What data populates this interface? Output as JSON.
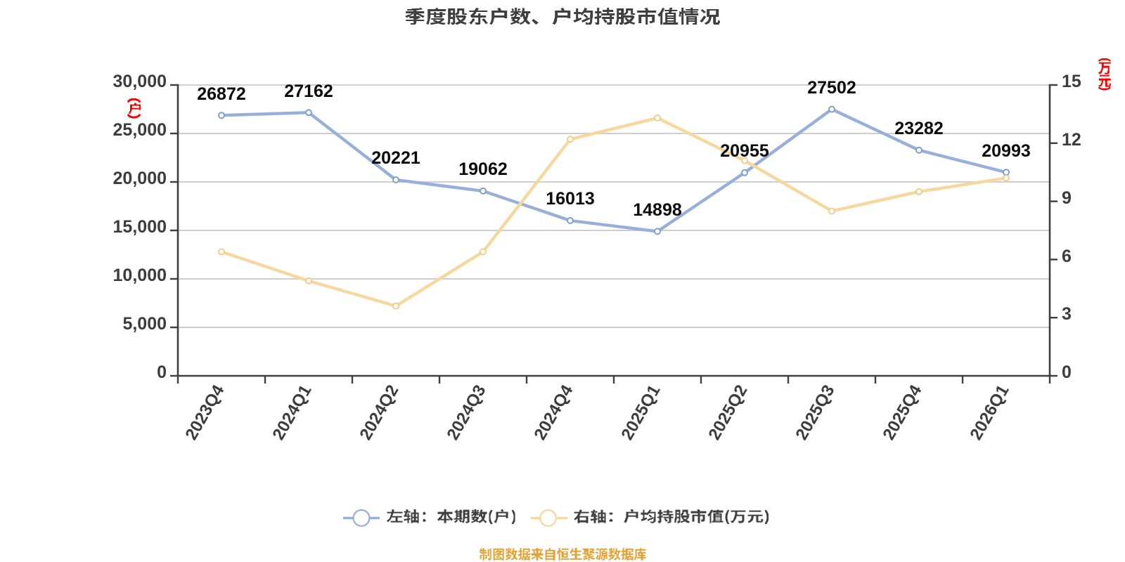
{
  "chart_data": {
    "type": "line",
    "title": "季度股东户数、户均持股市值情况",
    "categories": [
      "2023Q4",
      "2024Q1",
      "2024Q2",
      "2024Q3",
      "2024Q4",
      "2025Q1",
      "2025Q2",
      "2025Q3",
      "2025Q4",
      "2026Q1"
    ],
    "series": [
      {
        "name": "左轴：本期数(户)",
        "axis": "left",
        "color": "#96AFDB",
        "marker_color": "#7E9ED2",
        "values": [
          26872,
          27162,
          20221,
          19062,
          16013,
          14898,
          20955,
          27502,
          23282,
          20993
        ],
        "show_labels": true
      },
      {
        "name": "右轴：户均持股市值(万元)",
        "axis": "right",
        "color": "#F6D89D",
        "marker_color": "#EECD8D",
        "values": [
          6.4,
          4.9,
          3.6,
          6.4,
          12.2,
          13.3,
          11.1,
          8.5,
          9.5,
          10.2
        ],
        "show_labels": false
      }
    ],
    "left_axis": {
      "name": "(户)",
      "min": 0,
      "max": 30000,
      "tick_step": 5000,
      "tick_labels": [
        "0",
        "5,000",
        "10,000",
        "15,000",
        "20,000",
        "25,000",
        "30,000"
      ],
      "name_color": "#FB0000"
    },
    "right_axis": {
      "name": "(万元)",
      "min": 0,
      "max": 15,
      "tick_step": 3,
      "tick_labels": [
        "0",
        "3",
        "6",
        "9",
        "12",
        "15"
      ],
      "name_color": "#FB0000"
    },
    "grid": true,
    "legend_position": "bottom",
    "caption": "制图数据来自恒生聚源数据库"
  },
  "colors": {
    "background": "#FFFFFF",
    "title": "#3F3F3F",
    "axis": "#3E3E3E",
    "tick_label": "#3C3C3C",
    "grid": "#CFCFCF",
    "data_label": "#0A0A0A",
    "caption": "#DFA233",
    "axis_name": "#FB0000",
    "marker_fill": "#FFFFFF",
    "legend_text": "#3F3F3F"
  }
}
